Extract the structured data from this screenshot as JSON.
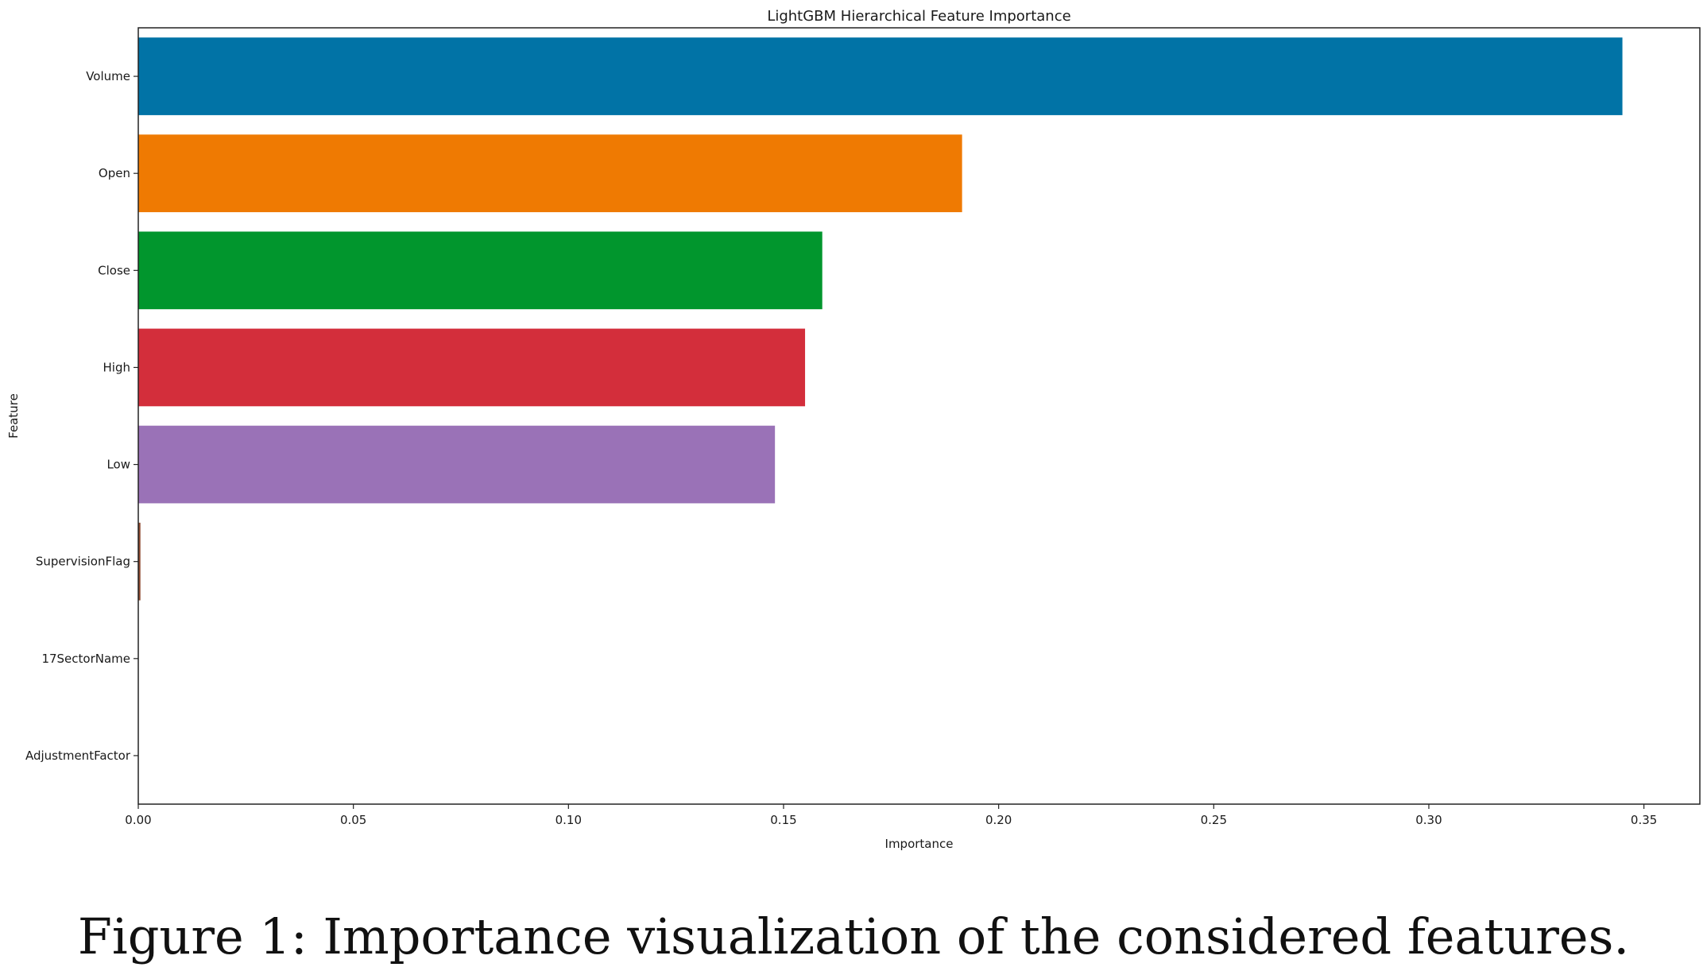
{
  "chart_data": {
    "type": "bar",
    "orientation": "horizontal",
    "title": "LightGBM Hierarchical Feature Importance",
    "xlabel": "Importance",
    "ylabel": "Feature",
    "categories": [
      "Volume",
      "Open",
      "Close",
      "High",
      "Low",
      "SupervisionFlag",
      "17SectorName",
      "AdjustmentFactor"
    ],
    "values": [
      0.345,
      0.1915,
      0.159,
      0.155,
      0.148,
      0.0005,
      0.0,
      0.0
    ],
    "colors": [
      "#0173a6",
      "#ef7a02",
      "#01962d",
      "#d32e3b",
      "#9a72b7",
      "#8c4a2f",
      "#e377c2",
      "#7f7f7f"
    ],
    "xticks": [
      "0.00",
      "0.05",
      "0.10",
      "0.15",
      "0.20",
      "0.25",
      "0.30",
      "0.35"
    ],
    "xlim": [
      0,
      0.363
    ],
    "grid": false,
    "legend": "none"
  },
  "caption": "Figure 1: Importance visualization of the considered features."
}
